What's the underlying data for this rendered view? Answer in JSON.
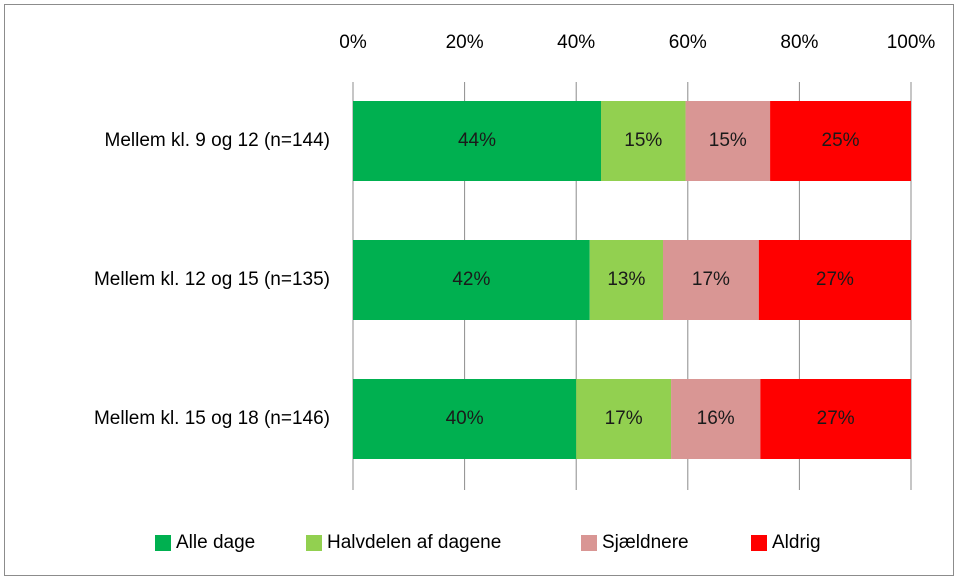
{
  "chart_data": {
    "type": "bar",
    "orientation": "horizontal",
    "stacked": "percent",
    "title": "",
    "xlabel": "",
    "ylabel": "",
    "xlim": [
      0,
      100
    ],
    "x_ticks": [
      "0%",
      "20%",
      "40%",
      "60%",
      "80%",
      "100%"
    ],
    "categories": [
      "Mellem kl. 9 og 12 (n=144)",
      "Mellem kl. 12 og 15 (n=135)",
      "Mellem kl. 15 og 18 (n=146)"
    ],
    "series": [
      {
        "name": "Alle dage",
        "color": "#00b050",
        "values": [
          44,
          42,
          40
        ],
        "labels": [
          "44%",
          "42%",
          "40%"
        ]
      },
      {
        "name": "Halvdelen af dagene",
        "color": "#92d050",
        "values": [
          15,
          13,
          17
        ],
        "labels": [
          "15%",
          "13%",
          "17%"
        ]
      },
      {
        "name": "Sjældnere",
        "color": "#d99694",
        "values": [
          15,
          17,
          16
        ],
        "labels": [
          "15%",
          "17%",
          "16%"
        ]
      },
      {
        "name": "Aldrig",
        "color": "#ff0000",
        "values": [
          25,
          27,
          27
        ],
        "labels": [
          "25%",
          "27%",
          "27%"
        ]
      }
    ],
    "grid": "vertical",
    "axis_position": "top",
    "legend": "bottom"
  }
}
